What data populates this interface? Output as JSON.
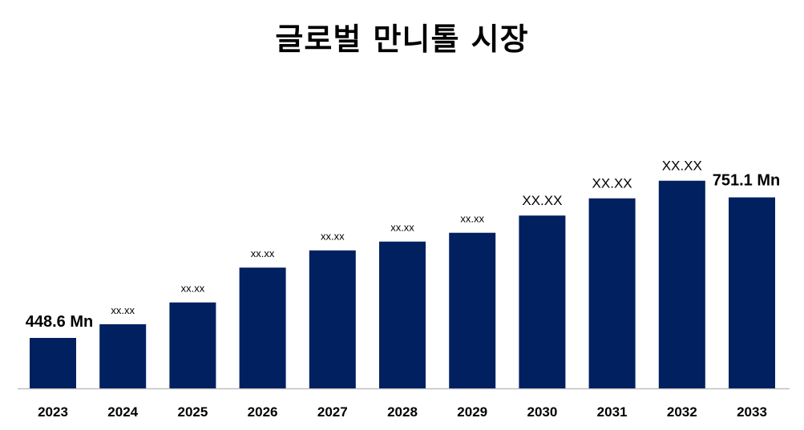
{
  "chart_data": {
    "type": "bar",
    "title": "글로벌 만니톨 시장",
    "categories": [
      "2023",
      "2024",
      "2025",
      "2026",
      "2027",
      "2028",
      "2029",
      "2030",
      "2031",
      "2032",
      "2033"
    ],
    "values": [
      448.6,
      478,
      525,
      600,
      637,
      656,
      675,
      712,
      749,
      787,
      751.1
    ],
    "data_labels": [
      "448.6 Mn",
      "xx.xx",
      "xx.xx",
      "xx.xx",
      "xx.xx",
      "xx.xx",
      "xx.xx",
      "XX.XX",
      "XX.XX",
      "XX.XX",
      "751.1 Mn"
    ],
    "label_styles": [
      "big",
      "small",
      "small",
      "small",
      "small",
      "small",
      "small",
      "med",
      "med",
      "med",
      "big"
    ],
    "bar_color": "#002060",
    "axis_color": "#bfbfbf",
    "xlabel": "",
    "ylabel": "",
    "grid": false,
    "legend": "none"
  }
}
